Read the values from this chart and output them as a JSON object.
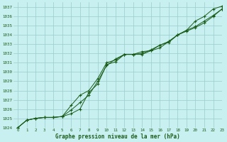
{
  "title": "Graphe pression niveau de la mer (hPa)",
  "background_color": "#c8f0f0",
  "grid_color": "#99cccc",
  "line_color": "#1a5c1a",
  "xlim": [
    -0.5,
    23
  ],
  "ylim": [
    1024,
    1037.5
  ],
  "xticks": [
    0,
    1,
    2,
    3,
    4,
    5,
    6,
    7,
    8,
    9,
    10,
    11,
    12,
    13,
    14,
    15,
    16,
    17,
    18,
    19,
    20,
    21,
    22,
    23
  ],
  "yticks": [
    1024,
    1025,
    1026,
    1027,
    1028,
    1029,
    1030,
    1031,
    1032,
    1033,
    1034,
    1035,
    1036,
    1037
  ],
  "series": [
    [
      1024.0,
      1024.8,
      1025.0,
      1025.1,
      1025.1,
      1025.2,
      1025.5,
      1026.0,
      1027.8,
      1028.7,
      1030.8,
      1031.1,
      1031.9,
      1031.9,
      1032.2,
      1032.3,
      1032.9,
      1033.2,
      1034.0,
      1034.5,
      1035.5,
      1036.0,
      1036.8,
      1037.1
    ],
    [
      1024.0,
      1024.8,
      1025.0,
      1025.1,
      1025.1,
      1025.2,
      1025.9,
      1026.7,
      1027.5,
      1029.0,
      1030.7,
      1031.4,
      1031.9,
      1031.9,
      1032.0,
      1032.4,
      1032.9,
      1033.3,
      1034.0,
      1034.5,
      1034.9,
      1035.5,
      1036.1,
      1036.8
    ],
    [
      1024.0,
      1024.8,
      1025.0,
      1025.1,
      1025.1,
      1025.2,
      1026.4,
      1027.5,
      1028.0,
      1029.3,
      1031.0,
      1031.3,
      1031.9,
      1031.9,
      1031.9,
      1032.3,
      1032.6,
      1033.3,
      1034.0,
      1034.4,
      1034.8,
      1035.3,
      1036.0,
      1036.8
    ]
  ]
}
